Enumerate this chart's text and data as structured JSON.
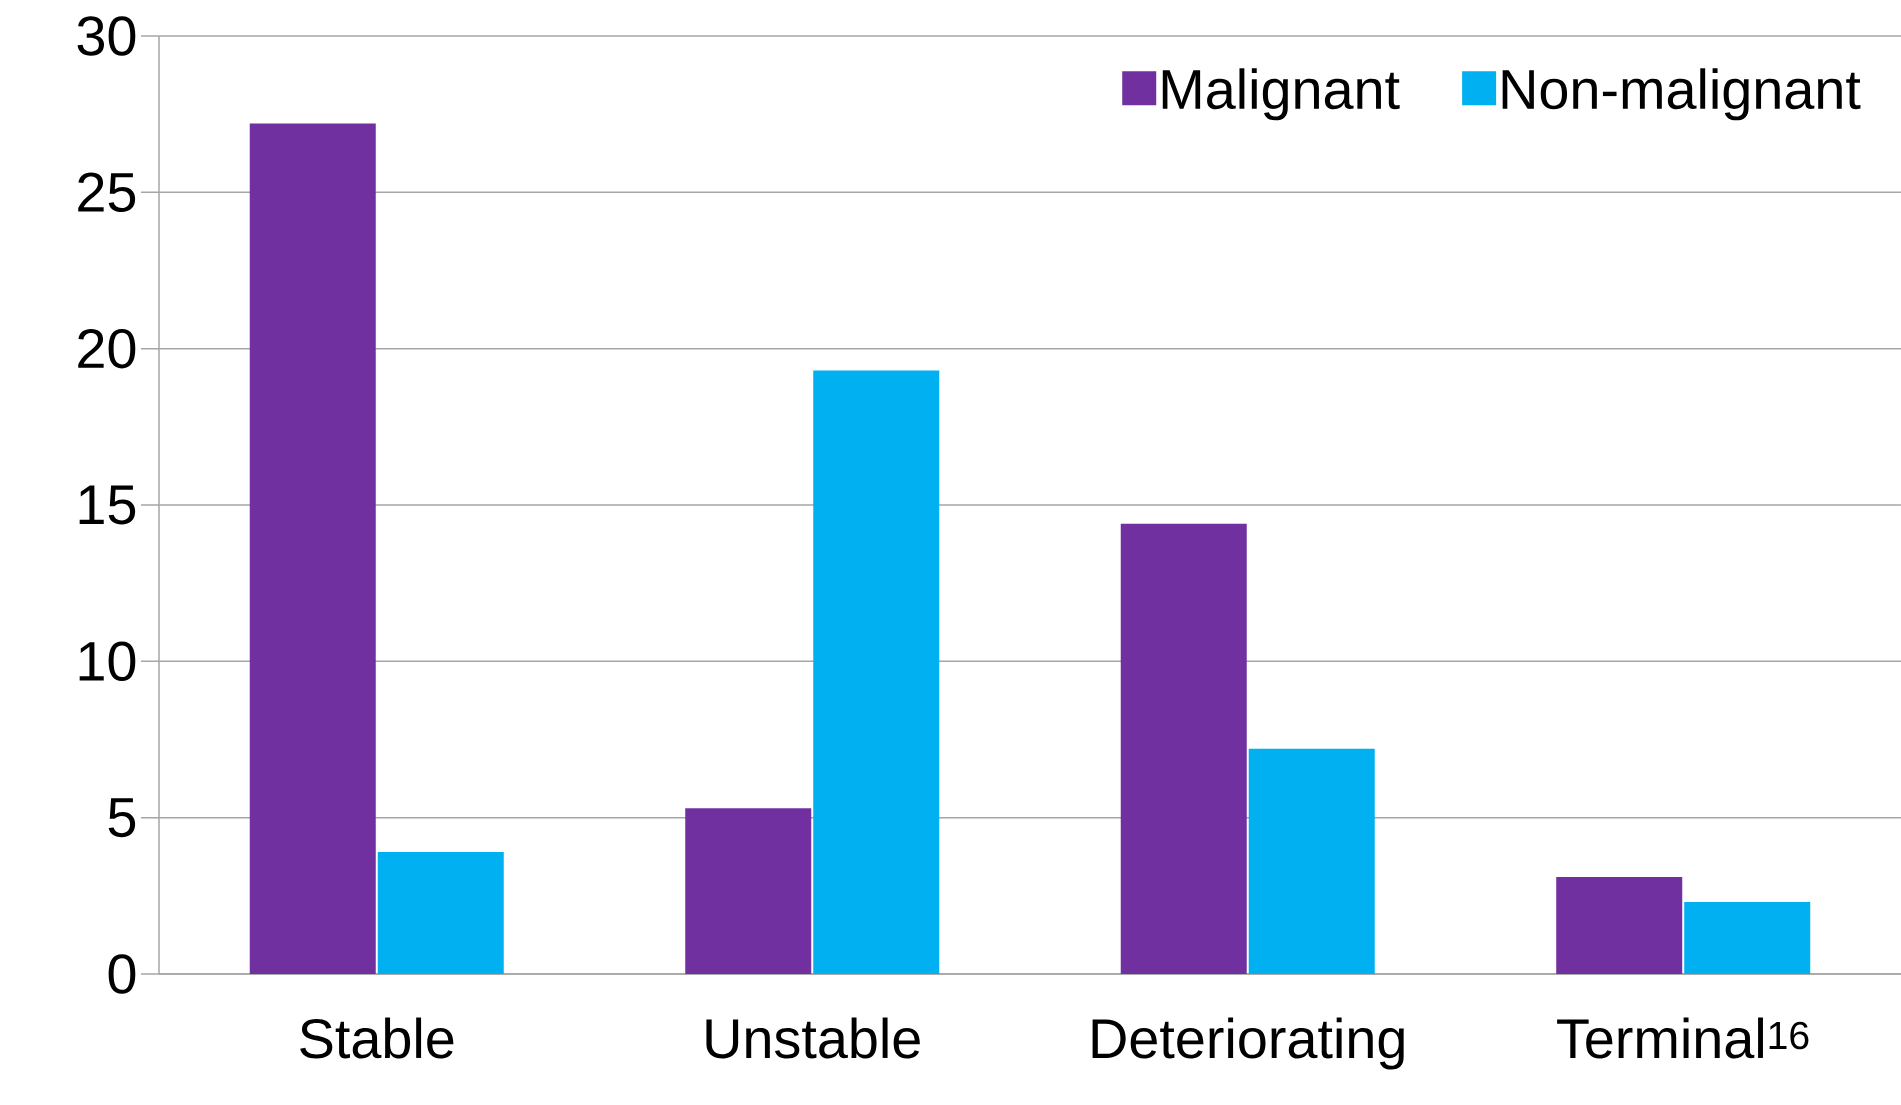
{
  "chart_data": {
    "type": "bar",
    "categories": [
      "Stable",
      "Unstable",
      "Deteriorating",
      "Terminal$^{16}$"
    ],
    "series": [
      {
        "name": "Malignant",
        "color": "#7030a0",
        "values": [
          27.2,
          5.3,
          14.4,
          3.1
        ]
      },
      {
        "name": "Non-malignant",
        "color": "#00b0f0",
        "values": [
          3.9,
          19.3,
          7.2,
          2.3
        ]
      }
    ],
    "ylim": [
      0,
      30
    ],
    "yticks": [
      0,
      5,
      10,
      15,
      20,
      25,
      30
    ],
    "grid": "y",
    "legend": "top right"
  }
}
